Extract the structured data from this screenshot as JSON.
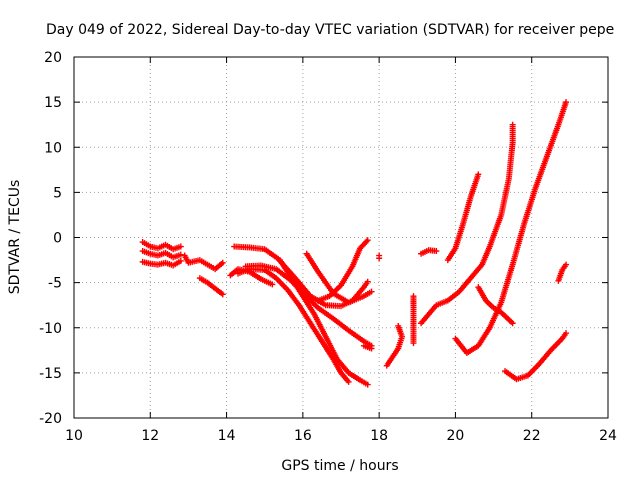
{
  "chart_data": {
    "type": "scatter",
    "title": "Day 049 of 2022, Sidereal Day-to-day VTEC variation (SDTVAR) for receiver pepe",
    "xlabel": "GPS time / hours",
    "ylabel": "SDTVAR / TECUs",
    "xlim": [
      10,
      24
    ],
    "ylim": [
      -20,
      20
    ],
    "x_ticks": [
      "10",
      "12",
      "14",
      "16",
      "18",
      "20",
      "22",
      "24"
    ],
    "y_ticks": [
      "20",
      "15",
      "10",
      "5",
      "0",
      "-5",
      "-10",
      "-15",
      "-20"
    ],
    "grid": true,
    "marker": "+",
    "color": "#ff0000",
    "series": [
      {
        "points": [
          [
            11.8,
            -0.5
          ],
          [
            12.0,
            -1.0
          ],
          [
            12.2,
            -1.2
          ],
          [
            12.4,
            -0.8
          ],
          [
            12.6,
            -1.3
          ],
          [
            12.8,
            -1.0
          ]
        ]
      },
      {
        "points": [
          [
            11.8,
            -1.5
          ],
          [
            12.0,
            -1.8
          ],
          [
            12.2,
            -2.0
          ],
          [
            12.4,
            -1.7
          ],
          [
            12.6,
            -2.2
          ],
          [
            12.8,
            -1.9
          ]
        ]
      },
      {
        "points": [
          [
            11.8,
            -2.7
          ],
          [
            12.0,
            -2.9
          ],
          [
            12.2,
            -3.0
          ],
          [
            12.4,
            -2.8
          ],
          [
            12.6,
            -3.1
          ],
          [
            12.8,
            -2.6
          ]
        ]
      },
      {
        "points": [
          [
            12.9,
            -2.0
          ],
          [
            13.0,
            -2.8
          ],
          [
            13.3,
            -2.5
          ],
          [
            13.5,
            -3.0
          ],
          [
            13.7,
            -3.5
          ],
          [
            13.9,
            -2.8
          ]
        ]
      },
      {
        "points": [
          [
            13.3,
            -4.5
          ],
          [
            13.5,
            -5.0
          ],
          [
            13.9,
            -6.3
          ]
        ]
      },
      {
        "points": [
          [
            14.1,
            -4.2
          ],
          [
            14.3,
            -3.5
          ],
          [
            14.6,
            -3.8
          ],
          [
            14.9,
            -4.6
          ],
          [
            15.2,
            -5.2
          ]
        ]
      },
      {
        "points": [
          [
            14.2,
            -1.0
          ],
          [
            14.6,
            -1.1
          ],
          [
            15.0,
            -1.3
          ],
          [
            15.4,
            -2.5
          ],
          [
            15.7,
            -4.5
          ],
          [
            16.0,
            -6.5
          ],
          [
            16.3,
            -8.5
          ],
          [
            16.6,
            -11.0
          ],
          [
            16.9,
            -13.5
          ],
          [
            17.2,
            -15.0
          ],
          [
            17.5,
            -15.8
          ],
          [
            17.7,
            -16.3
          ]
        ]
      },
      {
        "points": [
          [
            14.3,
            -4.0
          ],
          [
            14.6,
            -3.5
          ],
          [
            15.0,
            -3.6
          ],
          [
            15.3,
            -4.5
          ],
          [
            15.6,
            -5.8
          ],
          [
            15.9,
            -7.5
          ],
          [
            16.2,
            -9.5
          ],
          [
            16.5,
            -11.5
          ],
          [
            16.8,
            -13.5
          ],
          [
            17.0,
            -15.0
          ],
          [
            17.2,
            -16.0
          ]
        ]
      },
      {
        "points": [
          [
            14.5,
            -3.2
          ],
          [
            14.9,
            -3.1
          ],
          [
            15.3,
            -3.5
          ],
          [
            15.7,
            -4.8
          ],
          [
            16.0,
            -6.2
          ],
          [
            16.4,
            -7.8
          ],
          [
            16.8,
            -9.0
          ],
          [
            17.2,
            -10.3
          ],
          [
            17.6,
            -11.5
          ],
          [
            17.8,
            -12.0
          ]
        ]
      },
      {
        "points": [
          [
            15.4,
            -2.6
          ],
          [
            15.8,
            -4.5
          ],
          [
            16.2,
            -6.5
          ],
          [
            16.6,
            -7.5
          ],
          [
            17.0,
            -7.6
          ],
          [
            17.3,
            -7.0
          ],
          [
            17.6,
            -5.5
          ],
          [
            17.7,
            -4.9
          ]
        ]
      },
      {
        "points": [
          [
            16.1,
            -1.8
          ],
          [
            16.4,
            -3.8
          ],
          [
            16.8,
            -6.2
          ],
          [
            17.2,
            -7.2
          ],
          [
            17.6,
            -6.5
          ],
          [
            17.8,
            -6.0
          ]
        ]
      },
      {
        "points": [
          [
            16.4,
            -7.0
          ],
          [
            16.7,
            -6.5
          ],
          [
            17.0,
            -5.3
          ],
          [
            17.3,
            -3.2
          ],
          [
            17.5,
            -1.2
          ],
          [
            17.7,
            -0.3
          ]
        ]
      },
      {
        "points": [
          [
            18.0,
            -2.0
          ],
          [
            18.0,
            -2.3
          ]
        ]
      },
      {
        "points": [
          [
            18.2,
            -14.2
          ],
          [
            18.5,
            -12.3
          ],
          [
            18.6,
            -11.0
          ],
          [
            18.5,
            -9.8
          ]
        ]
      },
      {
        "points": [
          [
            17.8,
            -12.3
          ],
          [
            17.6,
            -12.0
          ]
        ]
      },
      {
        "points": [
          [
            18.9,
            -6.5
          ],
          [
            18.9,
            -7.3
          ],
          [
            18.9,
            -11.7
          ]
        ]
      },
      {
        "points": [
          [
            19.1,
            -1.8
          ],
          [
            19.3,
            -1.4
          ],
          [
            19.5,
            -1.5
          ]
        ]
      },
      {
        "points": [
          [
            19.1,
            -9.5
          ],
          [
            19.3,
            -8.5
          ],
          [
            19.5,
            -7.5
          ],
          [
            19.8,
            -7.0
          ],
          [
            20.1,
            -6.0
          ],
          [
            20.4,
            -4.5
          ],
          [
            20.7,
            -3.0
          ],
          [
            20.9,
            -1.0
          ],
          [
            21.2,
            2.5
          ],
          [
            21.4,
            6.5
          ],
          [
            21.5,
            10.5
          ],
          [
            21.5,
            12.5
          ]
        ]
      },
      {
        "points": [
          [
            19.8,
            -2.5
          ],
          [
            20.0,
            -1.2
          ],
          [
            20.2,
            1.5
          ],
          [
            20.4,
            4.5
          ],
          [
            20.6,
            7.0
          ]
        ]
      },
      {
        "points": [
          [
            20.0,
            -11.2
          ],
          [
            20.3,
            -12.8
          ],
          [
            20.6,
            -12.0
          ],
          [
            20.9,
            -10.0
          ],
          [
            21.2,
            -7.2
          ],
          [
            21.5,
            -3.0
          ],
          [
            21.8,
            1.5
          ],
          [
            22.1,
            5.5
          ],
          [
            22.4,
            9.0
          ],
          [
            22.7,
            12.5
          ],
          [
            22.9,
            15.0
          ]
        ]
      },
      {
        "points": [
          [
            20.6,
            -5.5
          ],
          [
            20.8,
            -7.0
          ],
          [
            21.0,
            -7.8
          ],
          [
            21.2,
            -8.3
          ],
          [
            21.5,
            -9.5
          ]
        ]
      },
      {
        "points": [
          [
            21.3,
            -14.8
          ],
          [
            21.6,
            -15.7
          ],
          [
            21.9,
            -15.3
          ],
          [
            22.2,
            -14.0
          ],
          [
            22.5,
            -12.5
          ],
          [
            22.8,
            -11.2
          ],
          [
            22.9,
            -10.6
          ]
        ]
      },
      {
        "points": [
          [
            22.7,
            -4.8
          ],
          [
            22.8,
            -3.6
          ],
          [
            22.9,
            -3.0
          ]
        ]
      }
    ]
  }
}
